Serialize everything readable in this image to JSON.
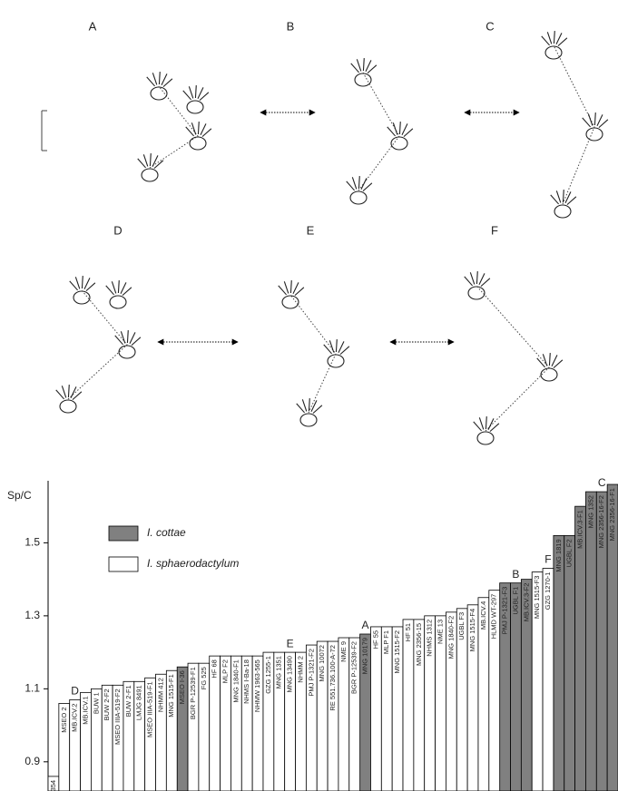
{
  "panels": [
    "A",
    "B",
    "C",
    "D",
    "E",
    "F"
  ],
  "chart_data": {
    "type": "bar",
    "y_label": "Sp/C",
    "categories": [
      "SMNGD 1354",
      "MSEO 2",
      "MB.ICV.2",
      "MB.ICV.1",
      "BUW 1",
      "BUW 2-F2",
      "MSEO IIIA-519-F2",
      "BUW 2-F1",
      "LMJG 8491",
      "MSEO IIIA-519-F1",
      "NHMM 412",
      "MNG 1515-F1",
      "MSEO I-36",
      "BGR P-12539-F1",
      "FG 525",
      "HF 68",
      "MLP F2",
      "MNG 1840-F1",
      "NHMS I-Ba-18",
      "NHMW 1963-565",
      "GZG 1255-1",
      "MNG 1351",
      "MNG 13490",
      "NHMM 2",
      "PMJ P-1321-F2",
      "MNG 10072",
      "RE 551.736.100-A-72",
      "NME 9",
      "BGR P-12539-F2",
      "MNG 10179",
      "HF 55",
      "MLP F1",
      "MNG 1515-F2",
      "HF 51",
      "MNG 2356-15",
      "NHMS 1312",
      "NME 13",
      "MNG 1840-F2",
      "UGBL F3",
      "MNG 1515-F4",
      "MB.ICV.4",
      "HLMD WT-297",
      "PMJ P-1321-F3",
      "UGBL F1",
      "MB.ICV.3-F2",
      "MNG 1515-F3",
      "GZG 1270-1",
      "MNG 1819",
      "UGBL F2",
      "MB.ICV.3-F1",
      "MNG 1352",
      "MNG 2356-16-F2",
      "MNG 2356-16-F1"
    ],
    "series": [
      {
        "name": "I. cottae",
        "color": "#808080",
        "values": [
          null,
          null,
          null,
          null,
          null,
          null,
          null,
          null,
          null,
          null,
          null,
          null,
          1.16,
          null,
          null,
          null,
          null,
          null,
          null,
          null,
          null,
          null,
          null,
          null,
          null,
          null,
          null,
          null,
          null,
          1.25,
          null,
          null,
          null,
          null,
          null,
          null,
          null,
          null,
          null,
          null,
          null,
          null,
          1.39,
          1.39,
          1.4,
          null,
          null,
          1.52,
          1.52,
          1.6,
          1.64,
          1.64,
          1.66
        ]
      },
      {
        "name": "I. sphaerodactylum",
        "color": "#ffffff",
        "values": [
          0.86,
          1.06,
          1.07,
          1.09,
          1.1,
          1.11,
          1.11,
          1.12,
          1.12,
          1.13,
          1.14,
          1.15,
          null,
          1.17,
          1.17,
          1.19,
          1.19,
          1.19,
          1.19,
          1.19,
          1.2,
          1.2,
          1.2,
          1.2,
          1.22,
          1.23,
          1.23,
          1.24,
          1.24,
          null,
          1.27,
          1.27,
          1.27,
          1.29,
          1.29,
          1.3,
          1.3,
          1.31,
          1.32,
          1.33,
          1.35,
          1.37,
          null,
          null,
          null,
          1.42,
          1.43,
          null,
          null,
          null,
          null,
          null,
          null
        ]
      }
    ],
    "annotations": [
      {
        "text": "D",
        "category": "MB.ICV.2"
      },
      {
        "text": "E",
        "category": "MNG 13490"
      },
      {
        "text": "A",
        "category": "MNG 10179"
      },
      {
        "text": "B",
        "category": "UGBL F1"
      },
      {
        "text": "F",
        "category": "GZG 1270-1"
      },
      {
        "text": "C",
        "category": "MNG 2356-16-F2"
      }
    ],
    "ylim": [
      0.82,
      1.67
    ],
    "yticks": [
      0.9,
      1.1,
      1.3,
      1.5
    ],
    "grid": false
  }
}
